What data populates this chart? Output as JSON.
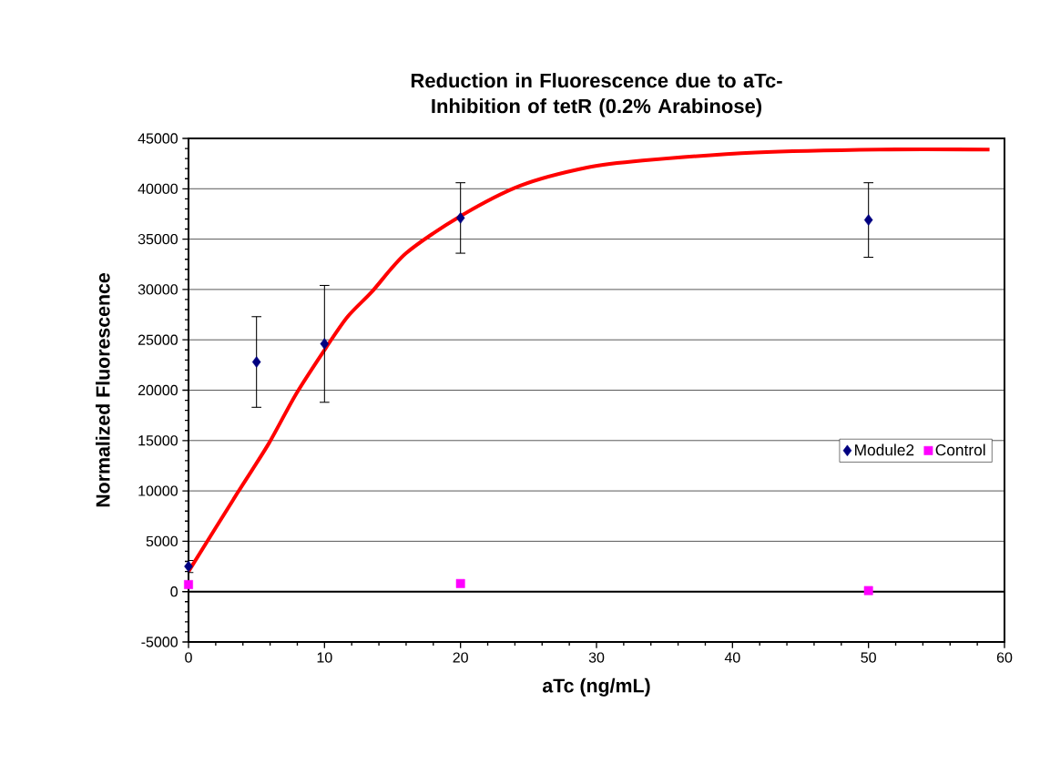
{
  "chart_data": {
    "type": "scatter",
    "title": "Reduction in Fluorescence due to aTc-Inhibition of tetR (0.2% Arabinose)",
    "xlabel": "aTc (ng/mL)",
    "ylabel": "Normalized Fluorescence",
    "series": [
      {
        "type": "line",
        "color": "#ff0000",
        "marker": "none",
        "x": [
          0,
          3.6,
          5.9,
          7.9,
          10.1,
          11.7,
          13.5,
          16.0,
          19.9,
          24.4,
          29.3,
          33.4,
          41.7,
          50.8,
          58.9
        ],
        "values": [
          2000,
          9800,
          14700,
          19600,
          24200,
          27300,
          29800,
          33600,
          37200,
          40300,
          42100,
          42800,
          43600,
          43900,
          43900
        ]
      },
      {
        "name": "Module2",
        "color": "#000080",
        "marker": "diamond",
        "x": [
          0,
          5,
          10,
          20,
          50
        ],
        "values": [
          2500,
          22800,
          24600,
          37100,
          36900
        ],
        "errors": [
          600,
          4500,
          5800,
          3500,
          3700
        ]
      },
      {
        "name": "Control",
        "color": "#ff00ff",
        "marker": "square",
        "x": [
          0,
          20,
          50
        ],
        "values": [
          700,
          800,
          100
        ]
      }
    ],
    "xlim": [
      0,
      60
    ],
    "xticks": [
      0,
      10,
      20,
      30,
      40,
      50,
      60
    ],
    "ylim": [
      -5000,
      45000
    ],
    "yticks": [
      -5000,
      0,
      5000,
      10000,
      15000,
      20000,
      25000,
      30000,
      35000,
      40000,
      45000
    ],
    "grid": "y",
    "legend": "right"
  }
}
